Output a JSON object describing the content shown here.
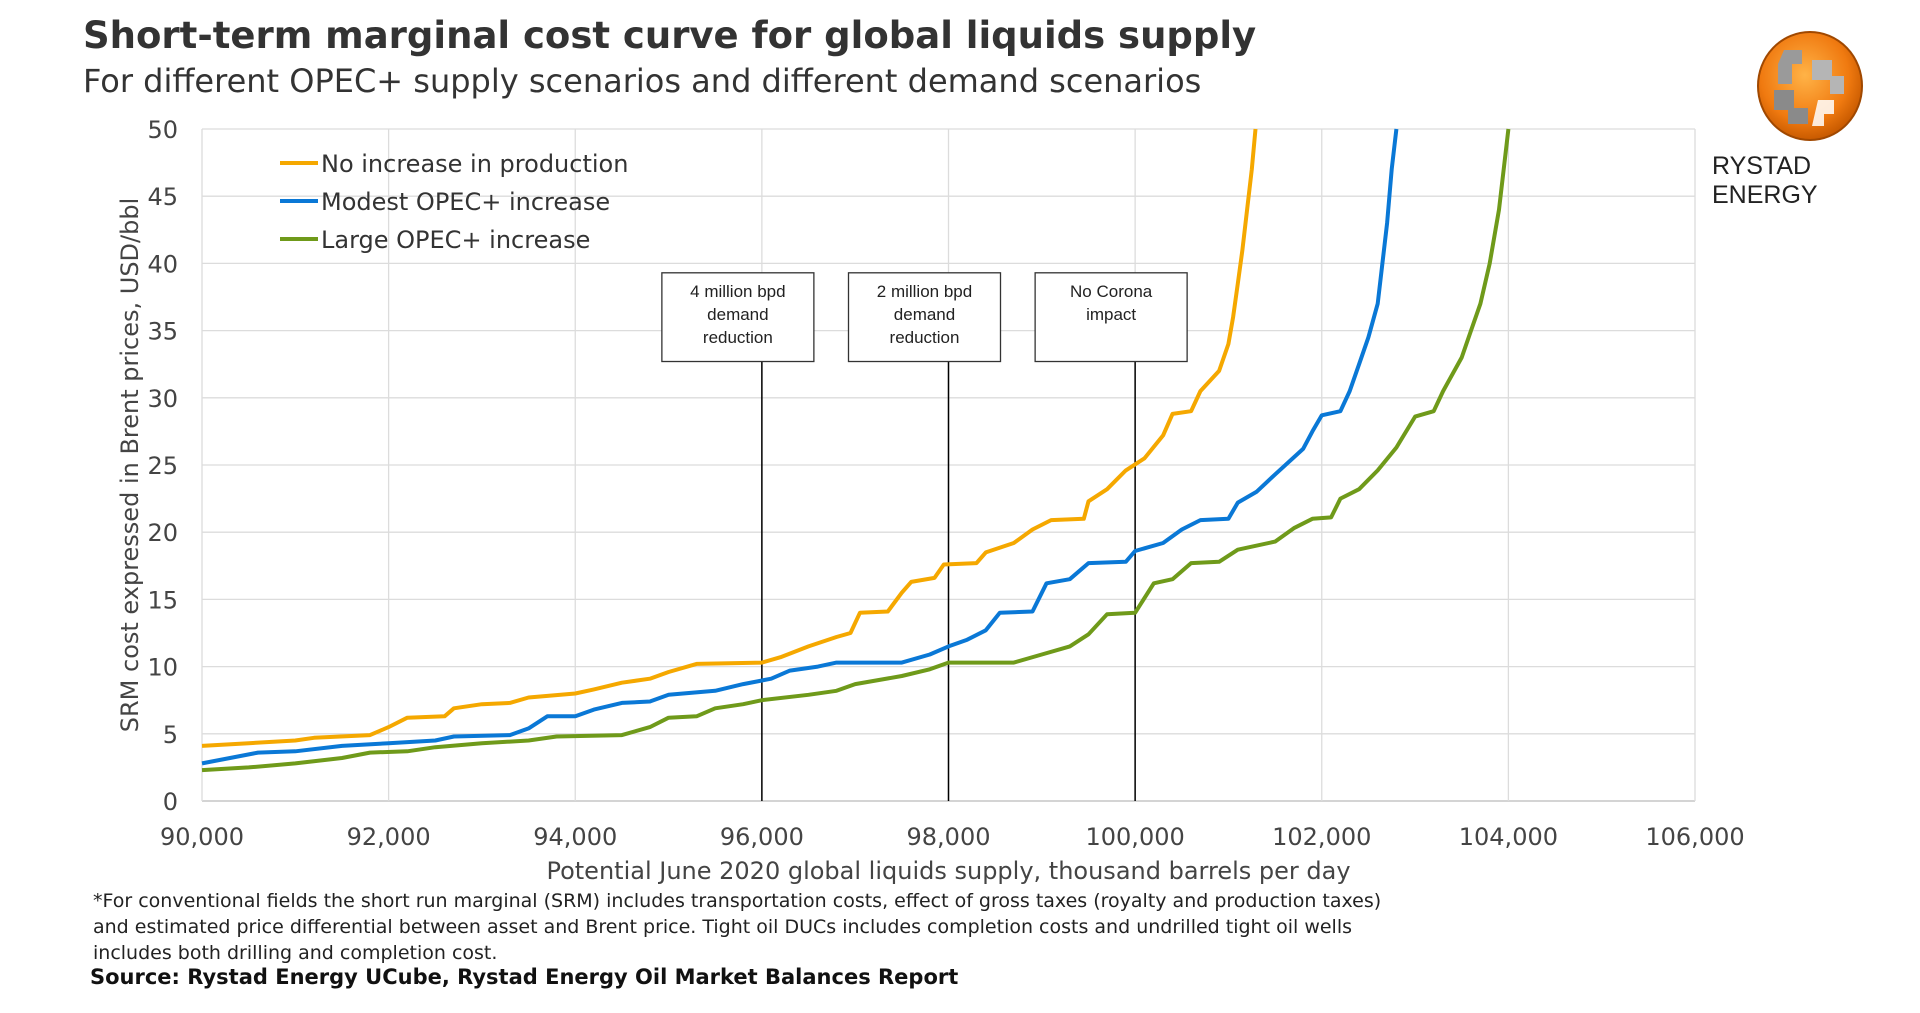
{
  "header": {
    "title": "Short-term marginal cost curve for global liquids supply",
    "subtitle": "For different OPEC+ supply scenarios and different demand scenarios",
    "logo_text": "RYSTAD ENERGY"
  },
  "footer": {
    "notes": [
      "*For conventional fields the short run marginal (SRM) includes transportation costs, effect of gross taxes (royalty and production taxes)",
      "and estimated price differential between asset and Brent price. Tight oil DUCs includes completion costs and undrilled tight oil wells",
      "includes both drilling and completion cost."
    ],
    "source": "Source: Rystad Energy UCube, Rystad Energy Oil Market Balances Report"
  },
  "chart_data": {
    "type": "line",
    "xlabel": "Potential June 2020 global liquids supply, thousand barrels per day",
    "ylabel": "SRM cost expressed in Brent prices, USD/bbl",
    "xlim": [
      90000,
      106000
    ],
    "ylim": [
      0,
      50
    ],
    "xticks": [
      90000,
      92000,
      94000,
      96000,
      98000,
      100000,
      102000,
      104000,
      106000
    ],
    "xtick_labels": [
      "90,000",
      "92,000",
      "94,000",
      "96,000",
      "98,000",
      "100,000",
      "102,000",
      "104,000",
      "106,000"
    ],
    "yticks": [
      0,
      5,
      10,
      15,
      20,
      25,
      30,
      35,
      40,
      45,
      50
    ],
    "grid": true,
    "legend_position": "top-left",
    "series": [
      {
        "name": "No increase in production",
        "color": "#F5A800",
        "points": [
          [
            90000,
            4.1
          ],
          [
            90500,
            4.3
          ],
          [
            91000,
            4.5
          ],
          [
            91200,
            4.7
          ],
          [
            91800,
            4.9
          ],
          [
            92000,
            5.5
          ],
          [
            92200,
            6.2
          ],
          [
            92600,
            6.3
          ],
          [
            92700,
            6.9
          ],
          [
            93000,
            7.2
          ],
          [
            93300,
            7.3
          ],
          [
            93500,
            7.7
          ],
          [
            94000,
            8.0
          ],
          [
            94200,
            8.3
          ],
          [
            94500,
            8.8
          ],
          [
            94800,
            9.1
          ],
          [
            95000,
            9.6
          ],
          [
            95300,
            10.2
          ],
          [
            96000,
            10.3
          ],
          [
            96200,
            10.7
          ],
          [
            96500,
            11.5
          ],
          [
            96800,
            12.2
          ],
          [
            96950,
            12.5
          ],
          [
            97050,
            14.0
          ],
          [
            97350,
            14.1
          ],
          [
            97500,
            15.5
          ],
          [
            97600,
            16.3
          ],
          [
            97850,
            16.6
          ],
          [
            97950,
            17.6
          ],
          [
            98300,
            17.7
          ],
          [
            98400,
            18.5
          ],
          [
            98700,
            19.2
          ],
          [
            98900,
            20.2
          ],
          [
            99100,
            20.9
          ],
          [
            99450,
            21.0
          ],
          [
            99500,
            22.3
          ],
          [
            99700,
            23.2
          ],
          [
            99900,
            24.6
          ],
          [
            100100,
            25.5
          ],
          [
            100300,
            27.2
          ],
          [
            100400,
            28.8
          ],
          [
            100600,
            29.0
          ],
          [
            100700,
            30.5
          ],
          [
            100900,
            32.0
          ],
          [
            101000,
            34.0
          ],
          [
            101050,
            36.0
          ],
          [
            101100,
            38.5
          ],
          [
            101150,
            41.0
          ],
          [
            101200,
            44.0
          ],
          [
            101250,
            47.0
          ],
          [
            101290,
            50.0
          ]
        ]
      },
      {
        "name": "Modest OPEC+ increase",
        "color": "#0A78D6",
        "points": [
          [
            90000,
            2.8
          ],
          [
            90300,
            3.2
          ],
          [
            90600,
            3.6
          ],
          [
            91000,
            3.7
          ],
          [
            91500,
            4.1
          ],
          [
            92000,
            4.3
          ],
          [
            92500,
            4.5
          ],
          [
            92700,
            4.8
          ],
          [
            93300,
            4.9
          ],
          [
            93500,
            5.4
          ],
          [
            93700,
            6.3
          ],
          [
            94000,
            6.3
          ],
          [
            94200,
            6.8
          ],
          [
            94500,
            7.3
          ],
          [
            94800,
            7.4
          ],
          [
            95000,
            7.9
          ],
          [
            95500,
            8.2
          ],
          [
            95800,
            8.7
          ],
          [
            96100,
            9.1
          ],
          [
            96300,
            9.7
          ],
          [
            96600,
            10.0
          ],
          [
            96800,
            10.3
          ],
          [
            97500,
            10.3
          ],
          [
            97800,
            10.9
          ],
          [
            98000,
            11.5
          ],
          [
            98200,
            12.0
          ],
          [
            98400,
            12.7
          ],
          [
            98550,
            14.0
          ],
          [
            98900,
            14.1
          ],
          [
            99050,
            16.2
          ],
          [
            99300,
            16.5
          ],
          [
            99500,
            17.7
          ],
          [
            99900,
            17.8
          ],
          [
            100000,
            18.6
          ],
          [
            100300,
            19.2
          ],
          [
            100500,
            20.2
          ],
          [
            100700,
            20.9
          ],
          [
            101000,
            21.0
          ],
          [
            101100,
            22.2
          ],
          [
            101300,
            23.0
          ],
          [
            101500,
            24.3
          ],
          [
            101800,
            26.2
          ],
          [
            101900,
            27.5
          ],
          [
            102000,
            28.7
          ],
          [
            102200,
            29.0
          ],
          [
            102300,
            30.5
          ],
          [
            102400,
            32.5
          ],
          [
            102500,
            34.5
          ],
          [
            102600,
            37.0
          ],
          [
            102650,
            40.0
          ],
          [
            102700,
            43.0
          ],
          [
            102750,
            47.0
          ],
          [
            102800,
            50.0
          ]
        ]
      },
      {
        "name": "Large OPEC+ increase",
        "color": "#6F9A1A",
        "points": [
          [
            90000,
            2.3
          ],
          [
            90500,
            2.5
          ],
          [
            91000,
            2.8
          ],
          [
            91500,
            3.2
          ],
          [
            91800,
            3.6
          ],
          [
            92200,
            3.7
          ],
          [
            92500,
            4.0
          ],
          [
            93000,
            4.3
          ],
          [
            93500,
            4.5
          ],
          [
            93800,
            4.8
          ],
          [
            94500,
            4.9
          ],
          [
            94800,
            5.5
          ],
          [
            95000,
            6.2
          ],
          [
            95300,
            6.3
          ],
          [
            95500,
            6.9
          ],
          [
            95800,
            7.2
          ],
          [
            96000,
            7.5
          ],
          [
            96500,
            7.9
          ],
          [
            96800,
            8.2
          ],
          [
            97000,
            8.7
          ],
          [
            97500,
            9.3
          ],
          [
            97800,
            9.8
          ],
          [
            98000,
            10.3
          ],
          [
            98700,
            10.3
          ],
          [
            99000,
            10.9
          ],
          [
            99300,
            11.5
          ],
          [
            99500,
            12.4
          ],
          [
            99700,
            13.9
          ],
          [
            100000,
            14.0
          ],
          [
            100200,
            16.2
          ],
          [
            100400,
            16.5
          ],
          [
            100600,
            17.7
          ],
          [
            100900,
            17.8
          ],
          [
            101100,
            18.7
          ],
          [
            101500,
            19.3
          ],
          [
            101700,
            20.3
          ],
          [
            101900,
            21.0
          ],
          [
            102100,
            21.1
          ],
          [
            102200,
            22.5
          ],
          [
            102400,
            23.2
          ],
          [
            102600,
            24.6
          ],
          [
            102800,
            26.3
          ],
          [
            103000,
            28.6
          ],
          [
            103200,
            29.0
          ],
          [
            103300,
            30.5
          ],
          [
            103500,
            33.0
          ],
          [
            103600,
            35.0
          ],
          [
            103700,
            37.0
          ],
          [
            103800,
            40.0
          ],
          [
            103900,
            44.0
          ],
          [
            103950,
            47.0
          ],
          [
            104000,
            50.0
          ]
        ]
      }
    ],
    "annotations": [
      {
        "x": 96000,
        "lines": [
          "4 million bpd",
          "demand",
          "reduction"
        ]
      },
      {
        "x": 98000,
        "lines": [
          "2 million bpd",
          "demand",
          "reduction"
        ]
      },
      {
        "x": 100000,
        "lines": [
          "No Corona",
          "impact"
        ]
      }
    ]
  }
}
